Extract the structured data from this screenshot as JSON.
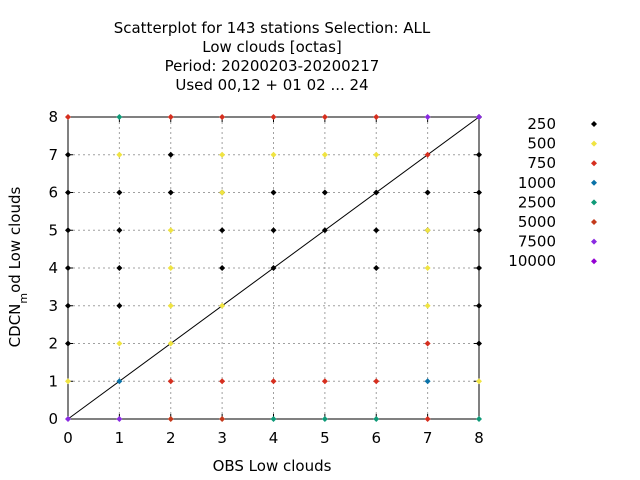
{
  "chart_data": {
    "type": "scatter",
    "title_lines": [
      "Scatterplot for  143 stations Selection: ALL",
      "Low clouds [octas]",
      "Period: 20200203-20200217",
      "Used  00,12  + 01 02 ... 24"
    ],
    "xlabel": "OBS Low clouds",
    "ylabel": "CDCN",
    "ylabel_sub": "m",
    "ylabel_rest": "od Low clouds",
    "xlim": [
      0,
      8
    ],
    "ylim": [
      0,
      8
    ],
    "xticks": [
      "0",
      "1",
      "2",
      "3",
      "4",
      "5",
      "6",
      "7",
      "8"
    ],
    "yticks": [
      "0",
      "1",
      "2",
      "3",
      "4",
      "5",
      "6",
      "7",
      "8"
    ],
    "grid": true,
    "legend_position": "right",
    "diagonal_line": true,
    "series": [
      {
        "name": "250",
        "color": "#000000",
        "points": [
          [
            0,
            2
          ],
          [
            0,
            3
          ],
          [
            0,
            4
          ],
          [
            0,
            5
          ],
          [
            0,
            6
          ],
          [
            0,
            7
          ],
          [
            1,
            3
          ],
          [
            1,
            4
          ],
          [
            1,
            5
          ],
          [
            1,
            6
          ],
          [
            2,
            6
          ],
          [
            2,
            7
          ],
          [
            3,
            4
          ],
          [
            3,
            5
          ],
          [
            3,
            6
          ],
          [
            4,
            4
          ],
          [
            4,
            5
          ],
          [
            4,
            6
          ],
          [
            5,
            5
          ],
          [
            5,
            6
          ],
          [
            6,
            4
          ],
          [
            6,
            5
          ],
          [
            6,
            6
          ],
          [
            7,
            5
          ],
          [
            7,
            6
          ],
          [
            8,
            2
          ],
          [
            8,
            3
          ],
          [
            8,
            4
          ],
          [
            8,
            5
          ],
          [
            8,
            6
          ],
          [
            8,
            7
          ],
          [
            8,
            8
          ]
        ]
      },
      {
        "name": "500",
        "color": "#f0e442",
        "points": [
          [
            0,
            1
          ],
          [
            1,
            2
          ],
          [
            1,
            7
          ],
          [
            2,
            2
          ],
          [
            2,
            3
          ],
          [
            2,
            4
          ],
          [
            2,
            5
          ],
          [
            3,
            3
          ],
          [
            3,
            6
          ],
          [
            3,
            7
          ],
          [
            4,
            7
          ],
          [
            5,
            7
          ],
          [
            6,
            7
          ],
          [
            7,
            3
          ],
          [
            7,
            4
          ],
          [
            7,
            5
          ],
          [
            8,
            1
          ]
        ]
      },
      {
        "name": "750",
        "color": "#d62f1f",
        "points": [
          [
            0,
            8
          ],
          [
            2,
            1
          ],
          [
            2,
            8
          ],
          [
            3,
            1
          ],
          [
            3,
            8
          ],
          [
            4,
            1
          ],
          [
            4,
            8
          ],
          [
            5,
            1
          ],
          [
            5,
            8
          ],
          [
            6,
            1
          ],
          [
            6,
            8
          ],
          [
            7,
            0
          ],
          [
            7,
            2
          ],
          [
            7,
            7
          ]
        ]
      },
      {
        "name": "1000",
        "color": "#0a72a8",
        "points": [
          [
            1,
            1
          ],
          [
            7,
            1
          ]
        ]
      },
      {
        "name": "2500",
        "color": "#0f9a78",
        "points": [
          [
            1,
            8
          ],
          [
            4,
            0
          ],
          [
            5,
            0
          ],
          [
            6,
            0
          ],
          [
            8,
            0
          ]
        ]
      },
      {
        "name": "5000",
        "color": "#c43a1c",
        "points": [
          [
            2,
            0
          ],
          [
            3,
            0
          ]
        ]
      },
      {
        "name": "7500",
        "color": "#8a2be2",
        "points": [
          [
            0,
            0
          ],
          [
            1,
            0
          ],
          [
            7,
            8
          ],
          [
            8,
            8
          ]
        ]
      },
      {
        "name": "10000",
        "color": "#9400d3",
        "points": []
      }
    ]
  }
}
